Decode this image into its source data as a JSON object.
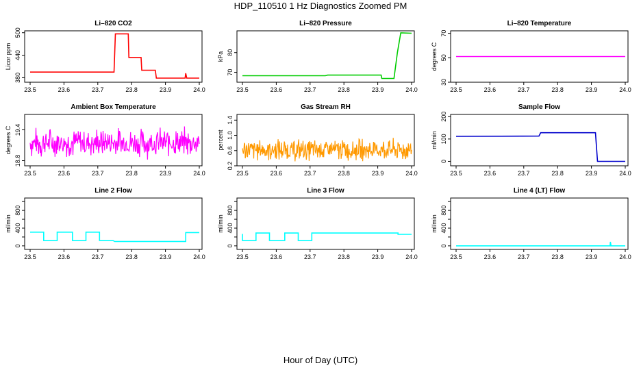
{
  "figure": {
    "title": "HDP_110510  1 Hz Diagnostics Zoomed PM",
    "x_caption": "Hour of Day (UTC)"
  },
  "chart_data": [
    {
      "type": "line",
      "title": "Li–820 CO2",
      "xlabel": "",
      "ylabel": "Licor ppm",
      "color": "#ff0000",
      "xlim": [
        23.5,
        24.0
      ],
      "ylim": [
        368,
        505
      ],
      "xticks": [
        "23.5",
        "23.6",
        "23.7",
        "23.8",
        "23.9",
        "24.0"
      ],
      "yticks": [
        380,
        440,
        500
      ],
      "ytick_labels": [
        "380",
        "440",
        "500"
      ],
      "noise": 0.8,
      "series": [
        {
          "points": [
            [
              23.5,
              395
            ],
            [
              23.748,
              395
            ],
            [
              23.752,
              497
            ],
            [
              23.79,
              497
            ],
            [
              23.792,
              434
            ],
            [
              23.828,
              434
            ],
            [
              23.83,
              400
            ],
            [
              23.87,
              400
            ],
            [
              23.873,
              379
            ],
            [
              23.958,
              379
            ],
            [
              23.96,
              392
            ],
            [
              23.963,
              379
            ],
            [
              24.0,
              379
            ]
          ]
        }
      ]
    },
    {
      "type": "line",
      "title": "Li–820 Pressure",
      "xlabel": "",
      "ylabel": "kPa",
      "color": "#00cc00",
      "xlim": [
        23.5,
        24.0
      ],
      "ylim": [
        65,
        91
      ],
      "xticks": [
        "23.5",
        "23.6",
        "23.7",
        "23.8",
        "23.9",
        "24.0"
      ],
      "yticks": [
        70,
        80
      ],
      "ytick_labels": [
        "70",
        "80"
      ],
      "noise": 0.1,
      "series": [
        {
          "points": [
            [
              23.5,
              68.3
            ],
            [
              23.745,
              68.3
            ],
            [
              23.752,
              68.6
            ],
            [
              23.91,
              68.6
            ],
            [
              23.912,
              66.9
            ],
            [
              23.948,
              66.9
            ],
            [
              23.958,
              80
            ],
            [
              23.968,
              90
            ],
            [
              24.0,
              89.8
            ]
          ]
        }
      ]
    },
    {
      "type": "line",
      "title": "Li–820 Temperature",
      "xlabel": "",
      "ylabel": "degrees C",
      "color": "#ff00ff",
      "xlim": [
        23.5,
        24.0
      ],
      "ylim": [
        30,
        72
      ],
      "xticks": [
        "23.5",
        "23.6",
        "23.7",
        "23.8",
        "23.9",
        "24.0"
      ],
      "yticks": [
        30,
        50,
        70
      ],
      "ytick_labels": [
        "30",
        "50",
        "70"
      ],
      "noise": 0,
      "series": [
        {
          "points": [
            [
              23.5,
              51
            ],
            [
              24.0,
              51
            ]
          ]
        }
      ]
    },
    {
      "type": "line",
      "title": "Ambient Box Temperature",
      "xlabel": "",
      "ylabel": "degrees C",
      "color": "#ff00ff",
      "xlim": [
        23.5,
        24.0
      ],
      "ylim": [
        18.7,
        19.7
      ],
      "xticks": [
        "23.5",
        "23.6",
        "23.7",
        "23.8",
        "23.9",
        "24.0"
      ],
      "yticks": [
        18.8,
        19.4
      ],
      "ytick_labels": [
        "18.8",
        "19.4"
      ],
      "noisy": {
        "center": 19.15,
        "amp": 0.28,
        "n": 320,
        "min": 18.75,
        "max": 19.65
      }
    },
    {
      "type": "line",
      "title": "Gas Stream RH",
      "xlabel": "",
      "ylabel": "percent",
      "color": "#ff9900",
      "xlim": [
        23.5,
        24.0
      ],
      "ylim": [
        0.2,
        1.55
      ],
      "xticks": [
        "23.5",
        "23.6",
        "23.7",
        "23.8",
        "23.9",
        "24.0"
      ],
      "yticks": [
        0.2,
        0.6,
        1.0,
        1.4
      ],
      "ytick_labels": [
        "0.2",
        "0.6",
        "1.0",
        "1.4"
      ],
      "noisy": {
        "center": 0.62,
        "amp": 0.28,
        "n": 360,
        "min": 0.22,
        "max": 1.5
      }
    },
    {
      "type": "line",
      "title": "Sample Flow",
      "xlabel": "",
      "ylabel": "ml/min",
      "color": "#0000cc",
      "xlim": [
        23.5,
        24.0
      ],
      "ylim": [
        -20,
        210
      ],
      "xticks": [
        "23.5",
        "23.6",
        "23.7",
        "23.8",
        "23.9",
        "24.0"
      ],
      "yticks": [
        0,
        100,
        200
      ],
      "ytick_labels": [
        "0",
        "100",
        "200"
      ],
      "noise": 2,
      "series": [
        {
          "points": [
            [
              23.5,
              112
            ],
            [
              23.745,
              113
            ],
            [
              23.75,
              128
            ],
            [
              23.912,
              128
            ],
            [
              23.918,
              0
            ],
            [
              24.0,
              0
            ]
          ]
        }
      ]
    },
    {
      "type": "line",
      "title": "Line 2 Flow",
      "xlabel": "",
      "ylabel": "ml/min",
      "color": "#00ffff",
      "xlim": [
        23.5,
        24.0
      ],
      "ylim": [
        -80,
        1080
      ],
      "xticks": [
        "23.5",
        "23.6",
        "23.7",
        "23.8",
        "23.9",
        "24.0"
      ],
      "yticks": [
        0,
        200,
        400,
        600,
        800,
        1000
      ],
      "ytick_labels": [
        "0",
        "",
        "400",
        "",
        "800",
        ""
      ],
      "noise": 0,
      "series": [
        {
          "points": [
            [
              23.5,
              310
            ],
            [
              23.54,
              310
            ],
            [
              23.54,
              120
            ],
            [
              23.58,
              120
            ],
            [
              23.58,
              310
            ],
            [
              23.625,
              310
            ],
            [
              23.625,
              120
            ],
            [
              23.665,
              120
            ],
            [
              23.665,
              310
            ],
            [
              23.705,
              310
            ],
            [
              23.705,
              120
            ],
            [
              23.745,
              120
            ],
            [
              23.75,
              100
            ],
            [
              23.96,
              100
            ],
            [
              23.96,
              300
            ],
            [
              24.0,
              300
            ]
          ]
        }
      ]
    },
    {
      "type": "line",
      "title": "Line 3 Flow",
      "xlabel": "",
      "ylabel": "ml/min",
      "color": "#00ffff",
      "xlim": [
        23.5,
        24.0
      ],
      "ylim": [
        -80,
        1080
      ],
      "xticks": [
        "23.5",
        "23.6",
        "23.7",
        "23.8",
        "23.9",
        "24.0"
      ],
      "yticks": [
        0,
        200,
        400,
        600,
        800,
        1000
      ],
      "ytick_labels": [
        "0",
        "",
        "400",
        "",
        "800",
        ""
      ],
      "noise": 0,
      "series": [
        {
          "points": [
            [
              23.5,
              270
            ],
            [
              23.5,
              120
            ],
            [
              23.54,
              120
            ],
            [
              23.54,
              290
            ],
            [
              23.58,
              290
            ],
            [
              23.58,
              120
            ],
            [
              23.625,
              120
            ],
            [
              23.625,
              290
            ],
            [
              23.665,
              290
            ],
            [
              23.665,
              120
            ],
            [
              23.705,
              120
            ],
            [
              23.705,
              290
            ],
            [
              23.96,
              290
            ],
            [
              23.96,
              260
            ],
            [
              24.0,
              260
            ]
          ]
        }
      ]
    },
    {
      "type": "line",
      "title": "Line 4 (LT) Flow",
      "xlabel": "",
      "ylabel": "ml/min",
      "color": "#00ffff",
      "xlim": [
        23.5,
        24.0
      ],
      "ylim": [
        -80,
        1080
      ],
      "xticks": [
        "23.5",
        "23.6",
        "23.7",
        "23.8",
        "23.9",
        "24.0"
      ],
      "yticks": [
        0,
        200,
        400,
        600,
        800,
        1000
      ],
      "ytick_labels": [
        "0",
        "",
        "400",
        "",
        "800",
        ""
      ],
      "noise": 0,
      "series": [
        {
          "points": [
            [
              23.5,
              0
            ],
            [
              23.955,
              0
            ],
            [
              23.956,
              90
            ],
            [
              23.958,
              0
            ],
            [
              24.0,
              0
            ]
          ]
        }
      ]
    }
  ]
}
